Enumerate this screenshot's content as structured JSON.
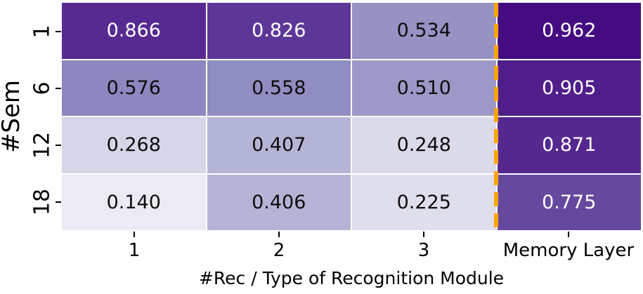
{
  "chart_data": {
    "type": "heatmap",
    "title": "",
    "xlabel": "#Rec / Type of Recognition Module",
    "ylabel": "#Sem",
    "x_categories": [
      "1",
      "2",
      "3",
      "Memory Layer"
    ],
    "y_categories": [
      "1",
      "6",
      "12",
      "18"
    ],
    "values": [
      [
        0.866,
        0.826,
        0.534,
        0.962
      ],
      [
        0.576,
        0.558,
        0.51,
        0.905
      ],
      [
        0.268,
        0.407,
        0.248,
        0.871
      ],
      [
        0.14,
        0.406,
        0.225,
        0.775
      ]
    ],
    "value_decimals": 3,
    "colormap": "Purples",
    "vmin": 0,
    "vmax": 1,
    "grid": "off",
    "legend": "none",
    "annotation": {
      "white_text_min": 0.7,
      "light_text_color": "#ffffff",
      "dark_text_color": "#0d0d0d"
    },
    "divider": {
      "before_column": "Memory Layer",
      "color": "#FFA500",
      "style": "dashed"
    }
  }
}
